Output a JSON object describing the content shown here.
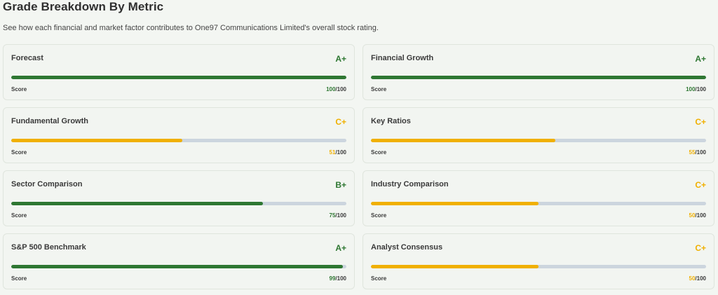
{
  "header": {
    "title": "Grade Breakdown By Metric",
    "subtitle": "See how each financial and market factor contributes to One97 Communications Limited's overall stock rating."
  },
  "colors": {
    "good": "#2e7732",
    "mid": "#f0b000",
    "track": "#ccd5de"
  },
  "score_label": "Score",
  "metrics": [
    {
      "name": "Forecast",
      "grade": "A+",
      "score": 100,
      "max": "/100",
      "tone": "good"
    },
    {
      "name": "Financial Growth",
      "grade": "A+",
      "score": 100,
      "max": "/100",
      "tone": "good"
    },
    {
      "name": "Fundamental Growth",
      "grade": "C+",
      "score": 51,
      "max": "/100",
      "tone": "mid"
    },
    {
      "name": "Key Ratios",
      "grade": "C+",
      "score": 55,
      "max": "/100",
      "tone": "mid"
    },
    {
      "name": "Sector Comparison",
      "grade": "B+",
      "score": 75,
      "max": "/100",
      "tone": "good"
    },
    {
      "name": "Industry Comparison",
      "grade": "C+",
      "score": 50,
      "max": "/100",
      "tone": "mid"
    },
    {
      "name": "S&P 500 Benchmark",
      "grade": "A+",
      "score": 99,
      "max": "/100",
      "tone": "good"
    },
    {
      "name": "Analyst Consensus",
      "grade": "C+",
      "score": 50,
      "max": "/100",
      "tone": "mid"
    }
  ]
}
